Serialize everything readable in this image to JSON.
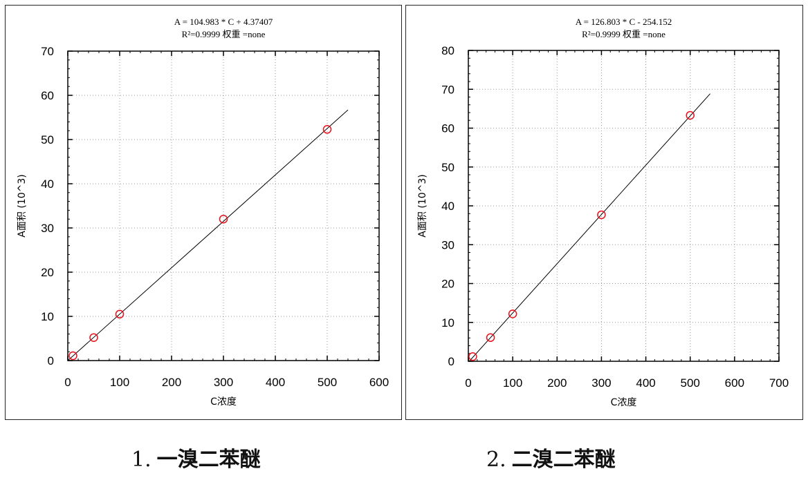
{
  "chart_data": [
    {
      "type": "scatter",
      "equation": "A =  104.983 * C + 4.37407",
      "fit_info": "R²=0.9999 权重 =none",
      "xlabel": "C浓度",
      "ylabel": "A面积 (10^3)",
      "xlim": [
        0,
        600
      ],
      "ylim": [
        0,
        70
      ],
      "xticks": [
        0,
        100,
        200,
        300,
        400,
        500,
        600
      ],
      "yticks": [
        0,
        10,
        20,
        30,
        40,
        50,
        60,
        70
      ],
      "grid": true,
      "points": [
        [
          10,
          1.1
        ],
        [
          50,
          5.2
        ],
        [
          100,
          10.5
        ],
        [
          300,
          32.0
        ],
        [
          500,
          52.3
        ]
      ],
      "fit_line": {
        "x0": 0,
        "x1": 540,
        "slope": 0.104983,
        "intercept": 0.00437
      },
      "caption_number": "1.",
      "caption_name": "一溴二苯醚",
      "colors": {
        "marker": "#e8101a",
        "line": "#000000",
        "grid": "#9a9a9a"
      }
    },
    {
      "type": "scatter",
      "equation": "A =  126.803 * C - 254.152",
      "fit_info": "R²=0.9999 权重 =none",
      "xlabel": "C浓度",
      "ylabel": "A面积 (10^3)",
      "xlim": [
        0,
        700
      ],
      "ylim": [
        0,
        80
      ],
      "xticks": [
        0,
        100,
        200,
        300,
        400,
        500,
        600,
        700
      ],
      "yticks": [
        0,
        10,
        20,
        30,
        40,
        50,
        60,
        70,
        80
      ],
      "grid": true,
      "points": [
        [
          10,
          1.2
        ],
        [
          50,
          6.1
        ],
        [
          100,
          12.2
        ],
        [
          300,
          37.7
        ],
        [
          500,
          63.3
        ]
      ],
      "fit_line": {
        "x0": 2,
        "x1": 545,
        "slope": 0.126803,
        "intercept": -0.254152
      },
      "caption_number": "2.",
      "caption_name": "二溴二苯醚",
      "colors": {
        "marker": "#e8101a",
        "line": "#000000",
        "grid": "#9a9a9a"
      }
    }
  ]
}
